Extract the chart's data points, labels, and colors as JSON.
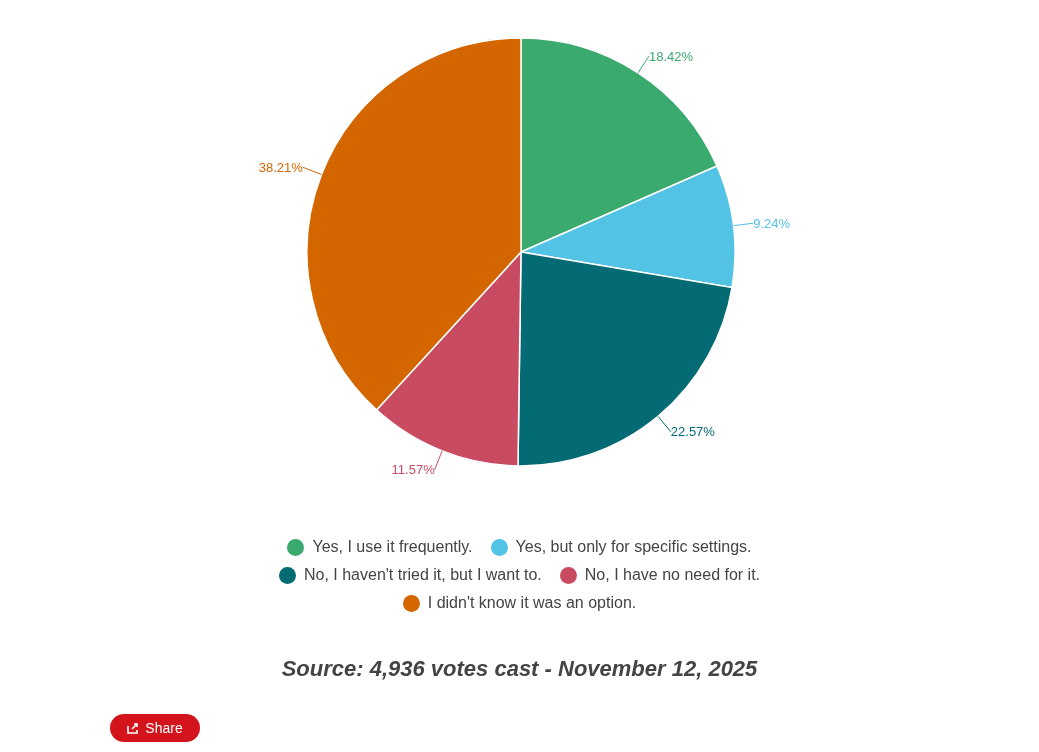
{
  "chart_data": {
    "type": "pie",
    "categories": [
      "Yes, I use it frequently.",
      "Yes, but only for specific settings.",
      "No, I haven't tried it, but I want to.",
      "No, I have no need for it.",
      "I didn't know it was an option."
    ],
    "values": [
      18.42,
      9.24,
      22.57,
      11.57,
      38.21
    ],
    "value_labels": [
      "18.42%",
      "9.24%",
      "22.57%",
      "11.57%",
      "38.21%"
    ],
    "colors": [
      "#3aaa6e",
      "#52c2e5",
      "#046a74",
      "#c94b62",
      "#d46600"
    ],
    "legend": "bottom",
    "annotations": [
      "Source: 4,936 votes cast - November 12, 2025",
      "Share"
    ]
  }
}
